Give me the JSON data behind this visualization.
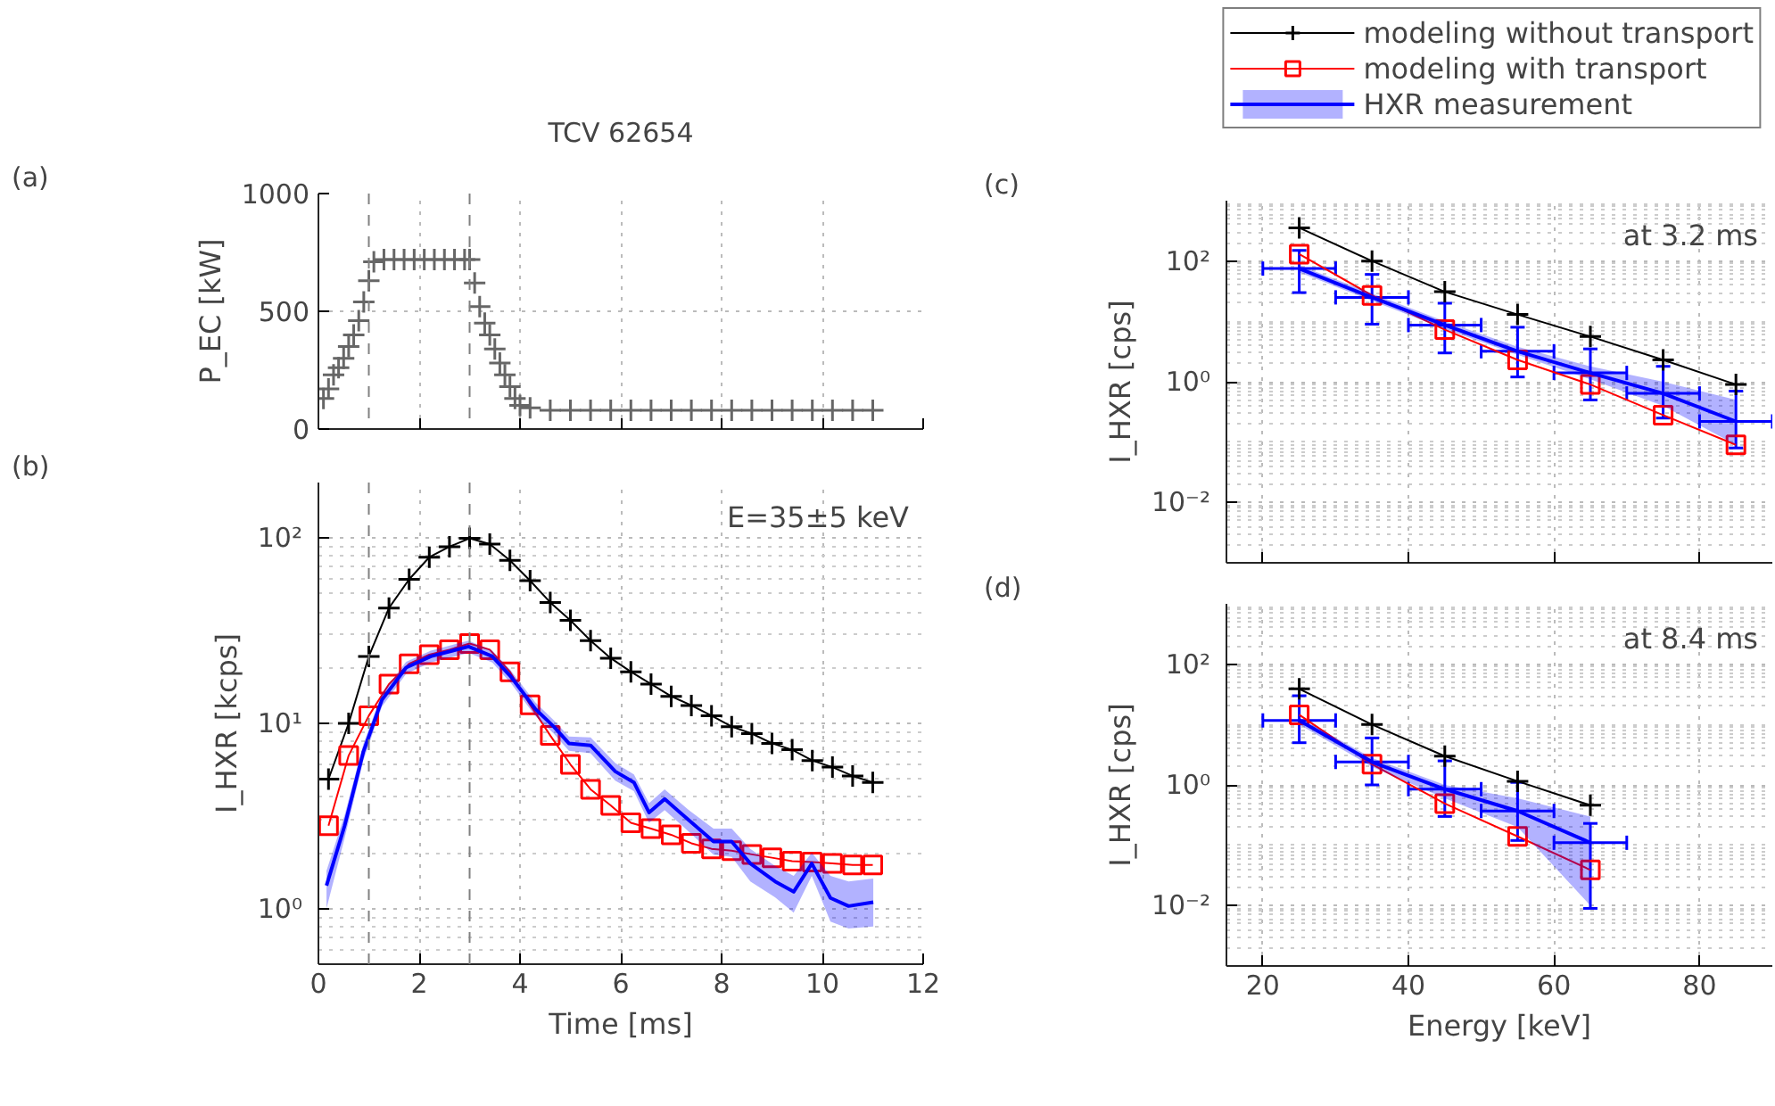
{
  "chart_data": [
    {
      "type": "scatter",
      "title": "TCV 62654",
      "ylabel": "P_EC [kW]",
      "annotations": [
        "(a)"
      ],
      "xlim": [
        0,
        12
      ],
      "xticks": [
        0,
        2,
        4,
        6,
        8,
        10,
        12
      ],
      "ylim": [
        0,
        1000
      ],
      "yticks": [
        0,
        500,
        1000
      ],
      "tick_labels": "y",
      "grid": true,
      "marker": "cross",
      "ref_lines": [
        {
          "axis": "x",
          "value": 1.0,
          "color": "#808080",
          "line_style": "dashed"
        },
        {
          "axis": "x",
          "value": 3.0,
          "color": "#808080",
          "line_style": "dashed"
        }
      ],
      "series": [
        {
          "color": "#666666",
          "x": [
            0.1,
            0.2,
            0.3,
            0.4,
            0.5,
            0.6,
            0.7,
            0.8,
            0.9,
            1.0,
            1.1,
            1.3,
            1.5,
            1.7,
            1.9,
            2.1,
            2.3,
            2.5,
            2.7,
            2.9,
            3.0,
            3.1,
            3.2,
            3.3,
            3.4,
            3.5,
            3.6,
            3.7,
            3.8,
            3.9,
            4.0,
            4.2,
            4.6,
            5.0,
            5.4,
            5.8,
            6.2,
            6.6,
            7.0,
            7.4,
            7.8,
            8.2,
            8.6,
            9.0,
            9.4,
            9.8,
            10.2,
            10.6,
            11.0
          ],
          "values": [
            130,
            170,
            230,
            260,
            300,
            350,
            400,
            460,
            540,
            630,
            710,
            720,
            720,
            720,
            720,
            720,
            720,
            720,
            720,
            720,
            720,
            620,
            520,
            450,
            400,
            340,
            280,
            230,
            180,
            130,
            100,
            90,
            80,
            80,
            80,
            80,
            80,
            80,
            80,
            80,
            80,
            80,
            80,
            80,
            80,
            80,
            80,
            80,
            80
          ]
        }
      ]
    },
    {
      "type": "line",
      "xlabel": "Time [ms]",
      "ylabel": "I_HXR [kcps]",
      "annotations": [
        "(b)",
        "E=35±5 keV"
      ],
      "log": true,
      "xlim": [
        0,
        12
      ],
      "xticks": [
        0,
        2,
        4,
        6,
        8,
        10,
        12
      ],
      "ylim": [
        0.5,
        200
      ],
      "yticks": [
        {
          "value": 1,
          "label": "10⁰"
        },
        {
          "value": 10,
          "label": "10¹"
        },
        {
          "value": 100,
          "label": "10²"
        }
      ],
      "grid": true,
      "ref_lines": [
        {
          "axis": "x",
          "value": 1.0,
          "color": "#808080",
          "line_style": "dashed"
        },
        {
          "axis": "x",
          "value": 3.0,
          "color": "#808080",
          "line_style": "dashed"
        }
      ],
      "series": [
        {
          "color": "#000000",
          "marker": "cross",
          "x": [
            0.2,
            0.6,
            1.0,
            1.4,
            1.8,
            2.2,
            2.6,
            3.0,
            3.4,
            3.8,
            4.2,
            4.6,
            5.0,
            5.4,
            5.8,
            6.2,
            6.6,
            7.0,
            7.4,
            7.8,
            8.2,
            8.6,
            9.0,
            9.4,
            9.8,
            10.2,
            10.6,
            11.0
          ],
          "values": [
            5.0,
            10,
            23,
            42,
            60,
            79,
            90,
            100,
            93,
            76,
            59,
            45,
            36,
            28,
            22.5,
            19,
            16.3,
            14,
            12.5,
            11,
            9.6,
            8.8,
            7.8,
            7.2,
            6.3,
            5.8,
            5.2,
            4.8
          ]
        },
        {
          "color": "#ff0000",
          "marker": "square",
          "x": [
            0.2,
            0.6,
            1.0,
            1.4,
            1.8,
            2.2,
            2.6,
            3.0,
            3.4,
            3.8,
            4.2,
            4.6,
            5.0,
            5.4,
            5.8,
            6.2,
            6.6,
            7.0,
            7.4,
            7.8,
            8.2,
            8.6,
            9.0,
            9.4,
            9.8,
            10.2,
            10.6,
            11.0
          ],
          "values": [
            2.8,
            6.7,
            11,
            16.3,
            21,
            23.5,
            25,
            27,
            25,
            19,
            12.6,
            8.6,
            6,
            4.4,
            3.6,
            2.9,
            2.7,
            2.5,
            2.25,
            2.1,
            2.05,
            1.96,
            1.88,
            1.8,
            1.78,
            1.75,
            1.72,
            1.72
          ]
        },
        {
          "color": "#0000ff",
          "x": [
            0.16,
            0.52,
            0.89,
            1.26,
            1.74,
            2.23,
            2.98,
            3.45,
            3.81,
            4.3,
            4.67,
            4.97,
            5.4,
            5.89,
            6.26,
            6.56,
            6.87,
            7.35,
            7.84,
            8.2,
            8.57,
            9.06,
            9.43,
            9.79,
            10.16,
            10.52,
            11.01
          ],
          "values": [
            1.33,
            2.8,
            7.0,
            13.4,
            20,
            23,
            26,
            23,
            18,
            12,
            9.6,
            7.8,
            7.6,
            5.5,
            4.8,
            3.3,
            3.9,
            3.0,
            2.3,
            2.3,
            1.75,
            1.4,
            1.23,
            1.75,
            1.14,
            1.03,
            1.08
          ],
          "lower": [
            1.0,
            2.4,
            6.3,
            12.3,
            18.5,
            21.3,
            24,
            21.3,
            16.6,
            11,
            8.8,
            7.1,
            6.9,
            4.9,
            4.3,
            2.9,
            3.4,
            2.6,
            1.95,
            1.9,
            1.4,
            1.15,
            0.95,
            1.5,
            0.85,
            0.78,
            0.8
          ],
          "upper": [
            1.6,
            3.2,
            7.7,
            14.5,
            21.5,
            24.7,
            28,
            24.7,
            19.4,
            13,
            10.4,
            8.5,
            8.4,
            6.1,
            5.3,
            3.7,
            4.4,
            3.4,
            2.7,
            2.7,
            2.1,
            1.7,
            1.5,
            2.0,
            1.5,
            1.4,
            1.45
          ]
        }
      ]
    },
    {
      "type": "line",
      "ylabel": "I_HXR [cps]",
      "annotations": [
        "(c)",
        "at 3.2 ms"
      ],
      "log": true,
      "xlim": [
        15,
        90
      ],
      "xticks": [
        20,
        40,
        60,
        80
      ],
      "ylim": [
        0.001,
        1000
      ],
      "yticks": [
        {
          "value": 0.01,
          "label": "10⁻²"
        },
        {
          "value": 1,
          "label": "10⁰"
        },
        {
          "value": 100,
          "label": "10²"
        }
      ],
      "tick_labels": "y",
      "grid": true,
      "legend": "top",
      "series": [
        {
          "name": "modeling without transport",
          "color": "#000000",
          "marker": "cross",
          "x": [
            25,
            35,
            45,
            55,
            65,
            75,
            85
          ],
          "values": [
            355,
            100,
            31,
            13,
            5.6,
            2.3,
            0.9
          ]
        },
        {
          "name": "modeling with transport",
          "color": "#ff0000",
          "marker": "square",
          "x": [
            25,
            35,
            45,
            55,
            65,
            75,
            85
          ],
          "values": [
            130,
            27,
            7.3,
            2.3,
            0.9,
            0.28,
            0.09
          ]
        },
        {
          "name": "HXR measurement",
          "color": "#0000ff",
          "x": [
            25,
            35,
            45,
            55,
            65,
            75,
            85
          ],
          "values": [
            75,
            25,
            8.7,
            3.2,
            1.4,
            0.64,
            0.22
          ],
          "lower": [
            65,
            22,
            7.5,
            2.8,
            1.1,
            0.4,
            0.09
          ],
          "upper": [
            85,
            29,
            10,
            3.8,
            1.8,
            1.0,
            0.5
          ],
          "errors": [
            [
              30,
              150
            ],
            [
              9,
              60
            ],
            [
              3,
              20
            ],
            [
              1.2,
              8
            ],
            [
              0.5,
              3.5
            ],
            [
              0.25,
              1.8
            ],
            [
              0.08,
              0.7
            ]
          ],
          "xerrors": [
            5,
            5,
            5,
            5,
            5,
            5,
            5
          ]
        }
      ]
    },
    {
      "type": "line",
      "xlabel": "Energy [keV]",
      "ylabel": "I_HXR [cps]",
      "annotations": [
        "(d)",
        "at 8.4 ms"
      ],
      "log": true,
      "xlim": [
        15,
        90
      ],
      "xticks": [
        20,
        40,
        60,
        80
      ],
      "ylim": [
        0.001,
        1000
      ],
      "yticks": [
        {
          "value": 0.01,
          "label": "10⁻²"
        },
        {
          "value": 1,
          "label": "10⁰"
        },
        {
          "value": 100,
          "label": "10²"
        }
      ],
      "grid": true,
      "series": [
        {
          "color": "#000000",
          "marker": "cross",
          "x": [
            25,
            35,
            45,
            55,
            65
          ],
          "values": [
            39,
            10,
            3.0,
            1.15,
            0.46
          ]
        },
        {
          "color": "#ff0000",
          "marker": "square",
          "x": [
            25,
            35,
            45,
            55,
            65
          ],
          "values": [
            14.5,
            2.2,
            0.49,
            0.14,
            0.039
          ]
        },
        {
          "color": "#0000ff",
          "x": [
            25,
            35,
            45,
            55,
            65
          ],
          "values": [
            11.7,
            2.4,
            0.85,
            0.37,
            0.11
          ],
          "lower": [
            10,
            2.0,
            0.6,
            0.2,
            0.01
          ],
          "upper": [
            13,
            2.8,
            1.0,
            0.6,
            0.3
          ],
          "errors": [
            [
              5,
              30
            ],
            [
              1,
              6
            ],
            [
              0.3,
              2.5
            ],
            [
              0.12,
              1.1
            ],
            [
              0.009,
              0.23
            ]
          ],
          "xerrors": [
            5,
            5,
            5,
            5,
            5
          ]
        }
      ]
    }
  ]
}
